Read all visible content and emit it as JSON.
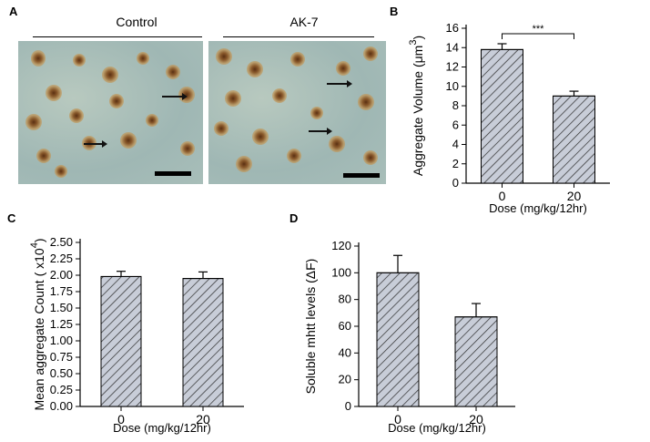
{
  "panels": {
    "a": {
      "letter": "A",
      "left_label": "Control",
      "right_label": "AK-7"
    },
    "b": {
      "letter": "B"
    },
    "c": {
      "letter": "C"
    },
    "d": {
      "letter": "D"
    }
  },
  "chart_data": [
    {
      "id": "B",
      "type": "bar",
      "categories": [
        "0",
        "20"
      ],
      "values": [
        13.8,
        9.0
      ],
      "errors": [
        0.6,
        0.5
      ],
      "ylabel": "Aggregate Volume (μm",
      "ylabel_sup": "3",
      "ylabel_end": ")",
      "xlabel": "Dose (mg/kg/12hr)",
      "ylim": [
        0,
        16
      ],
      "yticks": [
        "0",
        "2",
        "4",
        "6",
        "8",
        "10",
        "12",
        "14",
        "16"
      ],
      "significance": "***",
      "bar_fill": "#c8cdd8",
      "hatch": "diagonal"
    },
    {
      "id": "C",
      "type": "bar",
      "categories": [
        "0",
        "20"
      ],
      "values": [
        1.98,
        1.95
      ],
      "errors": [
        0.08,
        0.1
      ],
      "ylabel": "Mean aggregate Count ( x10",
      "ylabel_sup": "4",
      "ylabel_end": ")",
      "xlabel": "Dose (mg/kg/12hr)",
      "ylim": [
        0,
        2.5
      ],
      "yticks": [
        "0.00",
        "0.25",
        "0.50",
        "0.75",
        "1.00",
        "1.25",
        "1.50",
        "1.75",
        "2.00",
        "2.25",
        "2.50"
      ],
      "bar_fill": "#c8cdd8",
      "hatch": "diagonal"
    },
    {
      "id": "D",
      "type": "bar",
      "categories": [
        "0",
        "20"
      ],
      "values": [
        100,
        67
      ],
      "errors": [
        13,
        10
      ],
      "ylabel": "Soluble mhtt levels (ΔF)",
      "xlabel": "Dose (mg/kg/12hr)",
      "ylim": [
        0,
        120
      ],
      "yticks": [
        "0",
        "20",
        "40",
        "60",
        "80",
        "100",
        "120"
      ],
      "bar_fill": "#c8cdd8",
      "hatch": "diagonal"
    }
  ]
}
